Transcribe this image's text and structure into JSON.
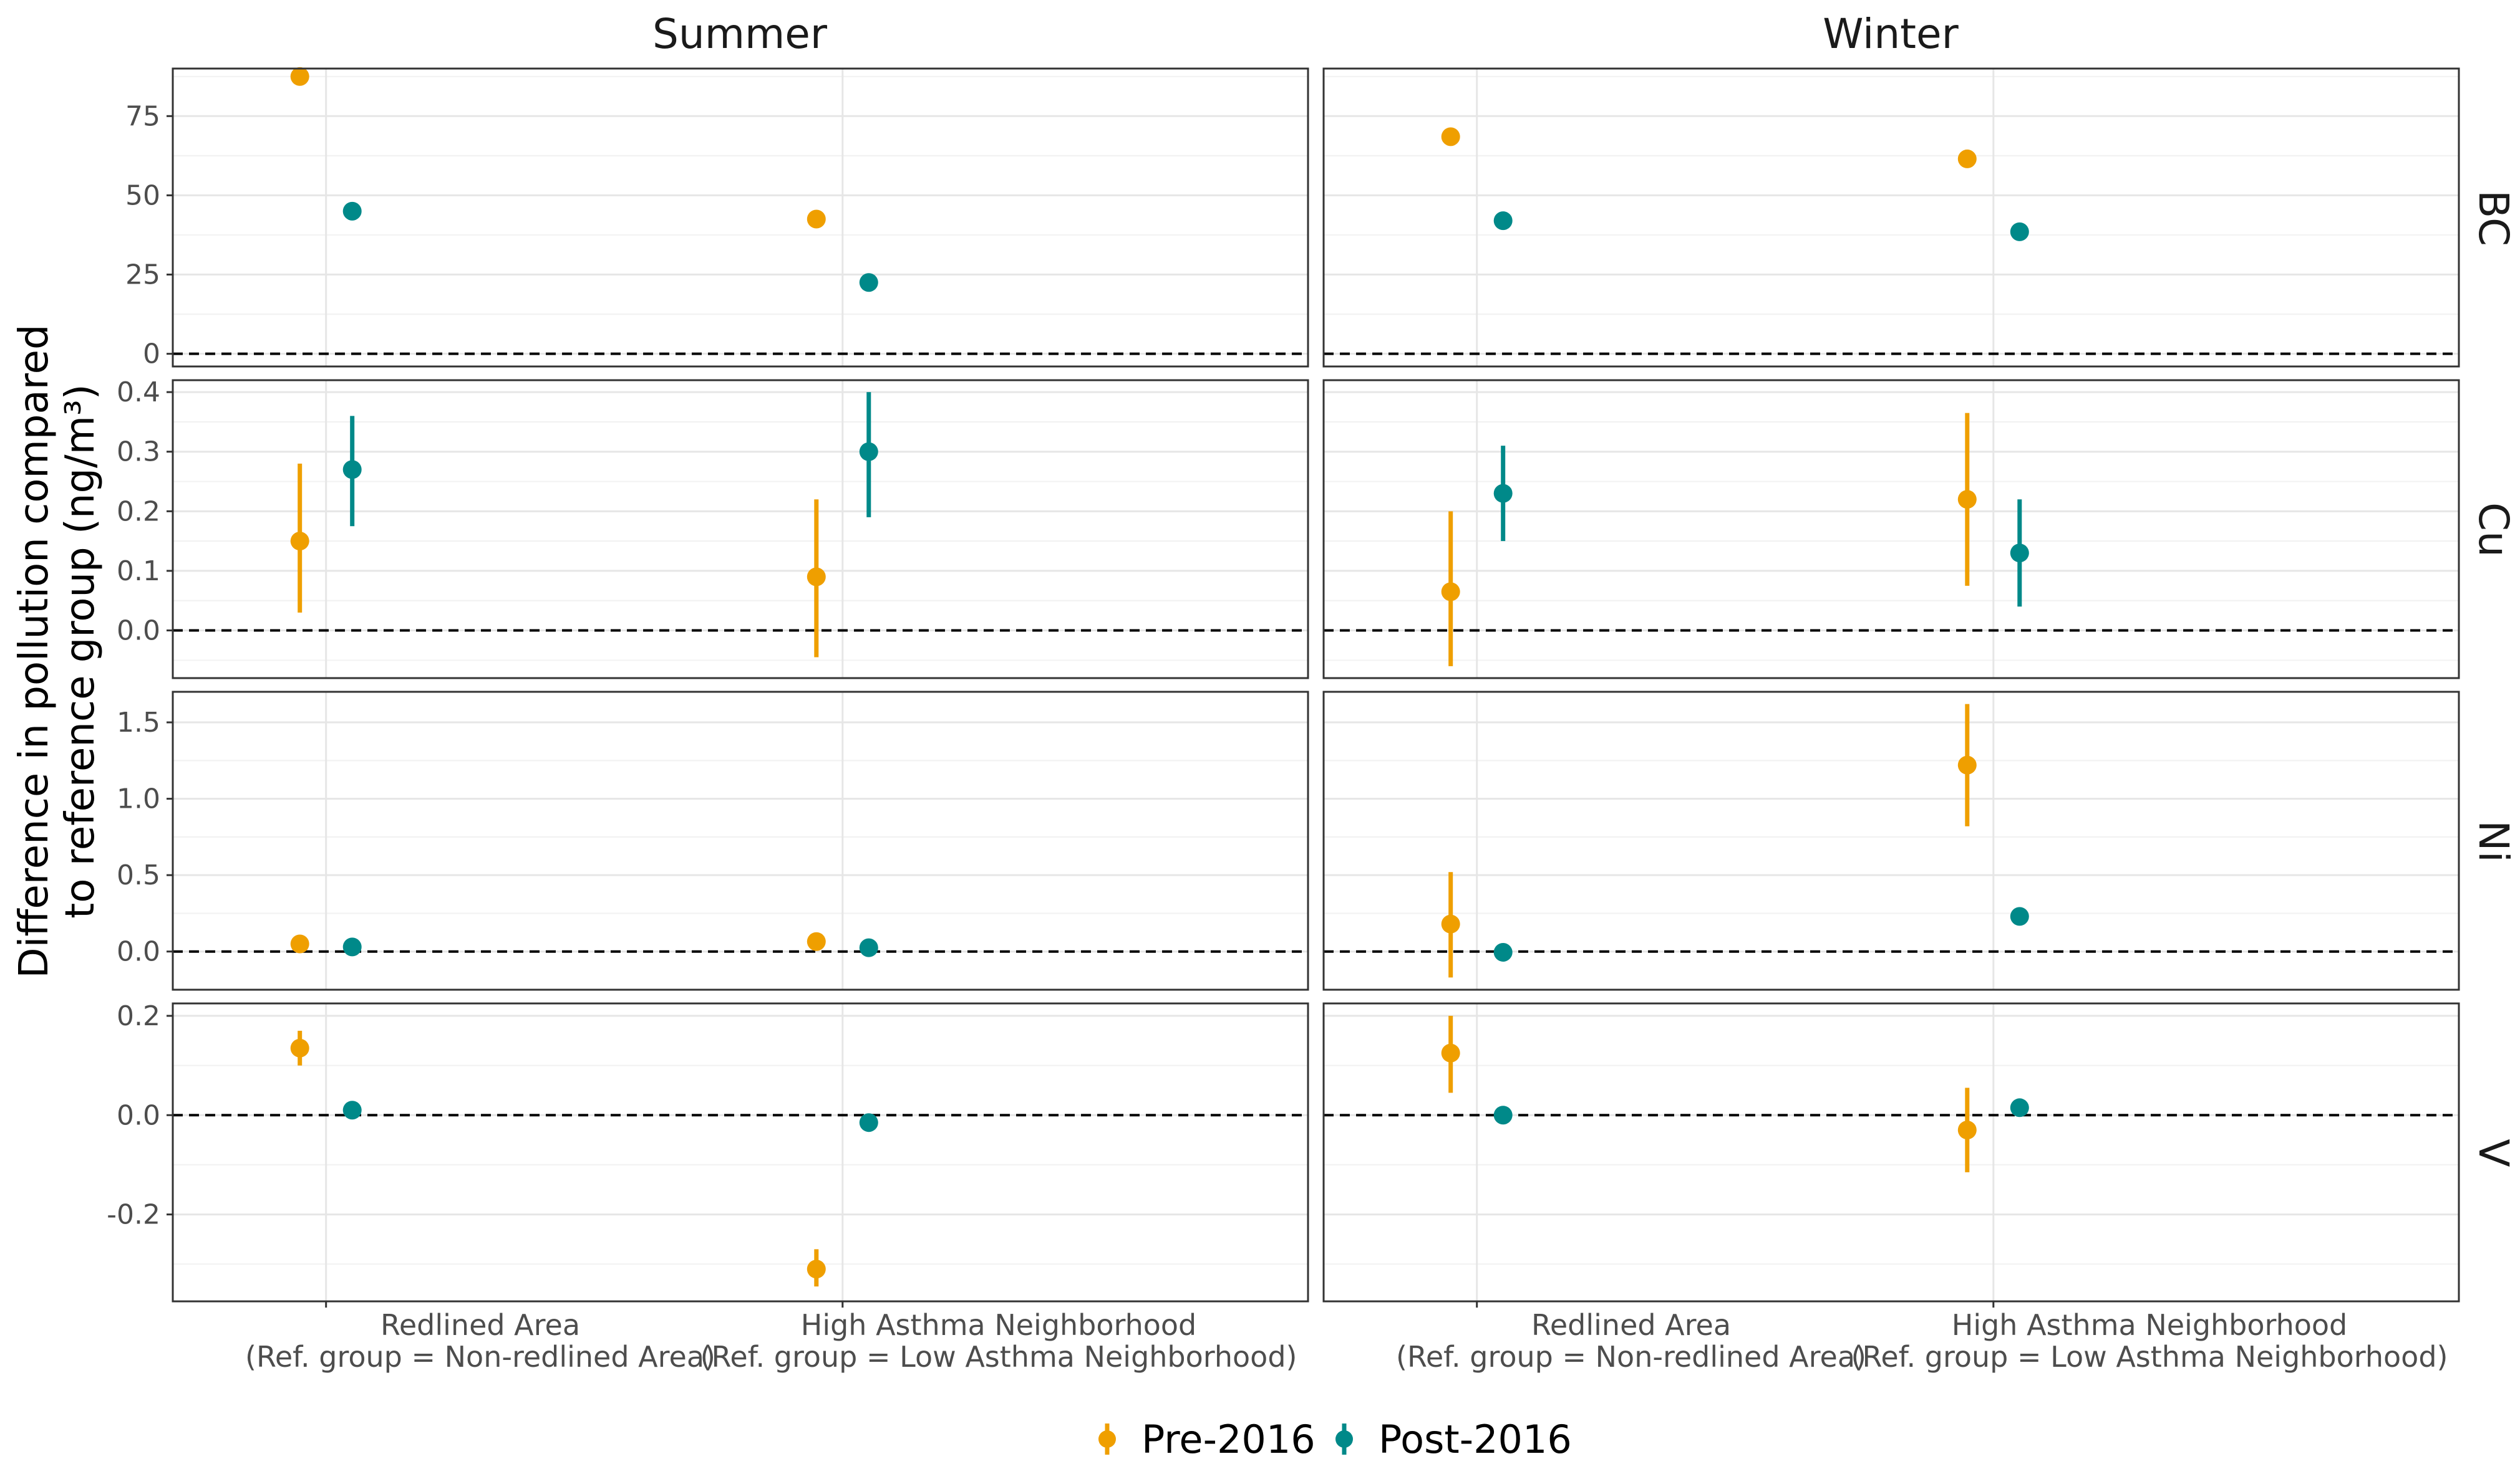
{
  "chart_data": {
    "type": "scatter",
    "ylabel": [
      "Difference in pollution compared",
      "to reference group (ng/m³)"
    ],
    "columns": [
      "Summer",
      "Winter"
    ],
    "rows": [
      "BC",
      "Cu",
      "Ni",
      "V"
    ],
    "categories": [
      [
        "Redlined Area",
        "(Ref. group = Non-redlined Area)"
      ],
      [
        "High Asthma Neighborhood",
        "(Ref. group = Low Asthma Neighborhood)"
      ]
    ],
    "series_styles": [
      {
        "name": "Pre-2016",
        "color": "#ef9f00"
      },
      {
        "name": "Post-2016",
        "color": "#008989"
      }
    ],
    "legend_position": "bottom",
    "reference_line": 0,
    "panels": [
      {
        "row": "BC",
        "column": "Summer",
        "ylim": [
          -4,
          90
        ],
        "ticks": [
          0,
          25,
          50,
          75
        ],
        "tick_labels": [
          "0",
          "25",
          "50",
          "75"
        ],
        "series": [
          {
            "name": "Pre-2016",
            "values": [
              87.5,
              42.5
            ],
            "lower": [
              null,
              null
            ],
            "upper": [
              null,
              null
            ]
          },
          {
            "name": "Post-2016",
            "values": [
              45,
              22.5
            ],
            "lower": [
              null,
              null
            ],
            "upper": [
              null,
              null
            ]
          }
        ]
      },
      {
        "row": "BC",
        "column": "Winter",
        "ylim": [
          -4,
          90
        ],
        "ticks": [
          0,
          25,
          50,
          75
        ],
        "tick_labels": [
          "0",
          "25",
          "50",
          "75"
        ],
        "series": [
          {
            "name": "Pre-2016",
            "values": [
              68.5,
              61.5
            ],
            "lower": [
              null,
              null
            ],
            "upper": [
              null,
              null
            ]
          },
          {
            "name": "Post-2016",
            "values": [
              42,
              38.5
            ],
            "lower": [
              null,
              null
            ],
            "upper": [
              null,
              null
            ]
          }
        ]
      },
      {
        "row": "Cu",
        "column": "Summer",
        "ylim": [
          -0.08,
          0.42
        ],
        "ticks": [
          0,
          0.1,
          0.2,
          0.3,
          0.4
        ],
        "tick_labels": [
          "0.0",
          "0.1",
          "0.2",
          "0.3",
          "0.4"
        ],
        "series": [
          {
            "name": "Pre-2016",
            "values": [
              0.15,
              0.09
            ],
            "lower": [
              0.03,
              -0.045
            ],
            "upper": [
              0.28,
              0.22
            ]
          },
          {
            "name": "Post-2016",
            "values": [
              0.27,
              0.3
            ],
            "lower": [
              0.175,
              0.19
            ],
            "upper": [
              0.36,
              0.4
            ]
          }
        ]
      },
      {
        "row": "Cu",
        "column": "Winter",
        "ylim": [
          -0.08,
          0.42
        ],
        "ticks": [
          0,
          0.1,
          0.2,
          0.3,
          0.4
        ],
        "tick_labels": [
          "0.0",
          "0.1",
          "0.2",
          "0.3",
          "0.4"
        ],
        "series": [
          {
            "name": "Pre-2016",
            "values": [
              0.065,
              0.22
            ],
            "lower": [
              -0.06,
              0.075
            ],
            "upper": [
              0.2,
              0.365
            ]
          },
          {
            "name": "Post-2016",
            "values": [
              0.23,
              0.13
            ],
            "lower": [
              0.15,
              0.04
            ],
            "upper": [
              0.31,
              0.22
            ]
          }
        ]
      },
      {
        "row": "Ni",
        "column": "Summer",
        "ylim": [
          -0.25,
          1.7
        ],
        "ticks": [
          0,
          0.5,
          1.0,
          1.5
        ],
        "tick_labels": [
          "0.0",
          "0.5",
          "1.0",
          "1.5"
        ],
        "series": [
          {
            "name": "Pre-2016",
            "values": [
              0.05,
              0.065
            ],
            "lower": [
              null,
              null
            ],
            "upper": [
              null,
              null
            ]
          },
          {
            "name": "Post-2016",
            "values": [
              0.03,
              0.025
            ],
            "lower": [
              null,
              null
            ],
            "upper": [
              null,
              null
            ]
          }
        ]
      },
      {
        "row": "Ni",
        "column": "Winter",
        "ylim": [
          -0.25,
          1.7
        ],
        "ticks": [
          0,
          0.5,
          1.0,
          1.5
        ],
        "tick_labels": [
          "0.0",
          "0.5",
          "1.0",
          "1.5"
        ],
        "series": [
          {
            "name": "Pre-2016",
            "values": [
              0.18,
              1.22
            ],
            "lower": [
              -0.17,
              0.82
            ],
            "upper": [
              0.52,
              1.62
            ]
          },
          {
            "name": "Post-2016",
            "values": [
              -0.005,
              0.23
            ],
            "lower": [
              null,
              null
            ],
            "upper": [
              null,
              null
            ]
          }
        ]
      },
      {
        "row": "V",
        "column": "Summer",
        "ylim": [
          -0.375,
          0.225
        ],
        "ticks": [
          -0.2,
          0,
          0.2
        ],
        "tick_labels": [
          "-0.2",
          "0.0",
          "0.2"
        ],
        "series": [
          {
            "name": "Pre-2016",
            "values": [
              0.135,
              -0.31
            ],
            "lower": [
              0.1,
              -0.345
            ],
            "upper": [
              0.17,
              -0.27
            ]
          },
          {
            "name": "Post-2016",
            "values": [
              0.01,
              -0.015
            ],
            "lower": [
              null,
              null
            ],
            "upper": [
              null,
              null
            ]
          }
        ]
      },
      {
        "row": "V",
        "column": "Winter",
        "ylim": [
          -0.375,
          0.225
        ],
        "ticks": [
          -0.2,
          0,
          0.2
        ],
        "tick_labels": [
          "-0.2",
          "0.0",
          "0.2"
        ],
        "series": [
          {
            "name": "Pre-2016",
            "values": [
              0.125,
              -0.03
            ],
            "lower": [
              0.045,
              -0.115
            ],
            "upper": [
              0.2,
              0.055
            ]
          },
          {
            "name": "Post-2016",
            "values": [
              0.0,
              0.015
            ],
            "lower": [
              null,
              null
            ],
            "upper": [
              null,
              null
            ]
          }
        ]
      }
    ]
  }
}
